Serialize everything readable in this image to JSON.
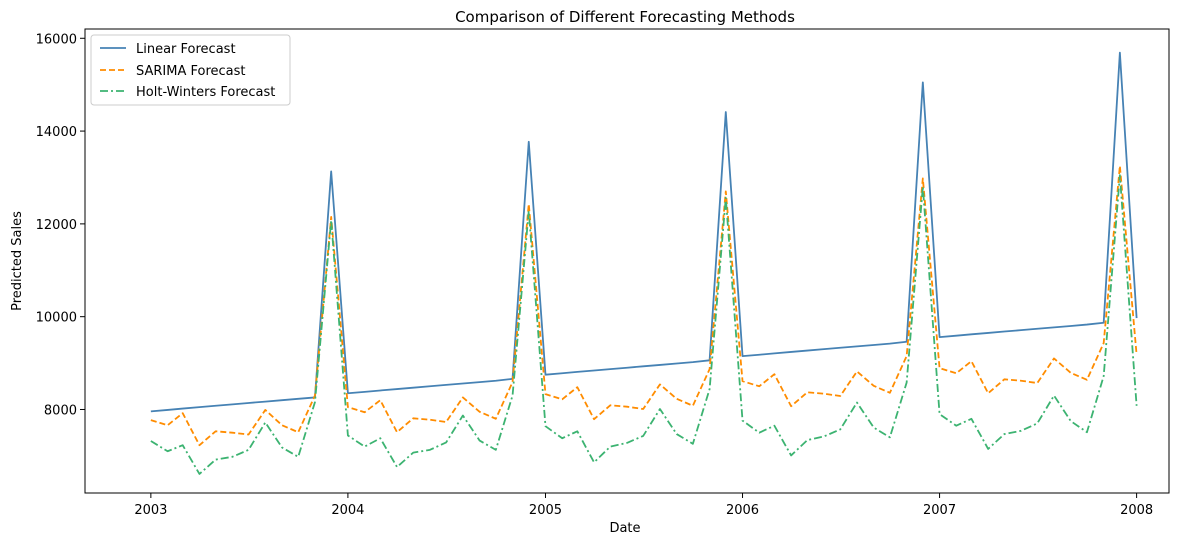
{
  "chart_data": {
    "type": "line",
    "title": "Comparison of Different Forecasting Methods",
    "xlabel": "Date",
    "ylabel": "Predicted Sales",
    "x_ticks": [
      "2003",
      "2004",
      "2005",
      "2006",
      "2007",
      "2008"
    ],
    "y_ticks": [
      "8000",
      "10000",
      "12000",
      "14000",
      "16000"
    ],
    "xlim": [
      "2002-09-01",
      "2008-03-01"
    ],
    "ylim": [
      6200,
      16200
    ],
    "legend_position": "top-left",
    "grid": false,
    "x_dates": [
      "2003-01",
      "2003-02",
      "2003-03",
      "2003-04",
      "2003-05",
      "2003-06",
      "2003-07",
      "2003-08",
      "2003-09",
      "2003-10",
      "2003-11",
      "2003-12",
      "2004-01",
      "2004-02",
      "2004-03",
      "2004-04",
      "2004-05",
      "2004-06",
      "2004-07",
      "2004-08",
      "2004-09",
      "2004-10",
      "2004-11",
      "2004-12",
      "2005-01",
      "2005-02",
      "2005-03",
      "2005-04",
      "2005-05",
      "2005-06",
      "2005-07",
      "2005-08",
      "2005-09",
      "2005-10",
      "2005-11",
      "2005-12",
      "2006-01",
      "2006-02",
      "2006-03",
      "2006-04",
      "2006-05",
      "2006-06",
      "2006-07",
      "2006-08",
      "2006-09",
      "2006-10",
      "2006-11",
      "2006-12",
      "2007-01",
      "2007-02",
      "2007-03",
      "2007-04",
      "2007-05",
      "2007-06",
      "2007-07",
      "2007-08",
      "2007-09",
      "2007-10",
      "2007-11",
      "2007-12",
      "2008-01"
    ],
    "series": [
      {
        "name": "Linear Forecast",
        "color": "#4682b4",
        "style": "solid",
        "values": [
          7960,
          7990,
          8020,
          8050,
          8080,
          8110,
          8140,
          8170,
          8200,
          8230,
          8260,
          13130,
          8350,
          8380,
          8410,
          8440,
          8470,
          8500,
          8530,
          8560,
          8590,
          8620,
          8660,
          13770,
          8750,
          8780,
          8810,
          8840,
          8870,
          8900,
          8930,
          8960,
          8990,
          9020,
          9060,
          14410,
          9150,
          9180,
          9210,
          9240,
          9270,
          9300,
          9330,
          9360,
          9390,
          9420,
          9460,
          15050,
          9560,
          9590,
          9620,
          9650,
          9680,
          9710,
          9740,
          9770,
          9800,
          9830,
          9870,
          15690,
          9970
        ]
      },
      {
        "name": "SARIMA Forecast",
        "color": "#ff8c00",
        "style": "dashed",
        "values": [
          7770,
          7660,
          7920,
          7230,
          7530,
          7500,
          7460,
          7990,
          7660,
          7510,
          8300,
          12150,
          8050,
          7940,
          8200,
          7510,
          7810,
          7780,
          7730,
          8260,
          7950,
          7800,
          8590,
          12430,
          8330,
          8220,
          8480,
          7790,
          8090,
          8060,
          8010,
          8540,
          8230,
          8080,
          8870,
          12700,
          8610,
          8500,
          8760,
          8070,
          8370,
          8340,
          8290,
          8820,
          8510,
          8360,
          9150,
          12980,
          8890,
          8780,
          9040,
          8350,
          8650,
          8620,
          8570,
          9100,
          8790,
          8640,
          9430,
          13250,
          9180
        ]
      },
      {
        "name": "Holt-Winters Forecast",
        "color": "#3cb371",
        "style": "dashdot",
        "values": [
          7320,
          7100,
          7230,
          6610,
          6920,
          6980,
          7130,
          7720,
          7180,
          6980,
          8160,
          12080,
          7440,
          7200,
          7380,
          6760,
          7070,
          7130,
          7290,
          7870,
          7330,
          7130,
          8300,
          12280,
          7640,
          7380,
          7530,
          6860,
          7200,
          7280,
          7430,
          8010,
          7470,
          7260,
          8440,
          12560,
          7760,
          7500,
          7650,
          7010,
          7340,
          7420,
          7570,
          8150,
          7610,
          7400,
          8580,
          12800,
          7900,
          7650,
          7800,
          7150,
          7470,
          7540,
          7700,
          8300,
          7750,
          7510,
          8720,
          13050,
          8080
        ]
      }
    ]
  }
}
